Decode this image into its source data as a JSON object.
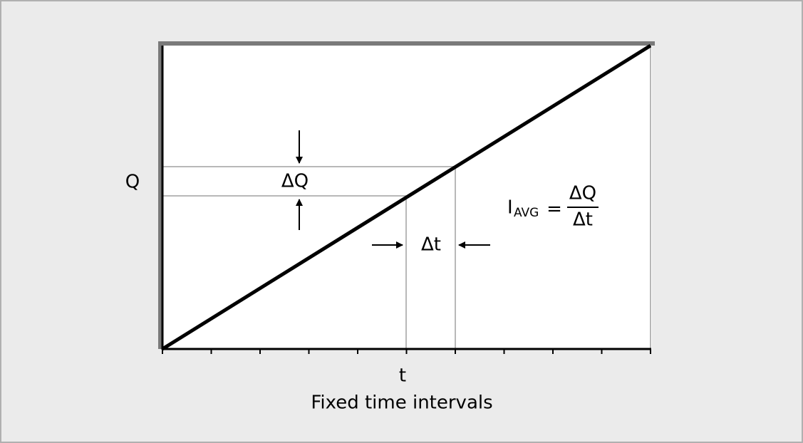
{
  "labels": {
    "y_axis": "Q",
    "delta_q": "ΔQ",
    "delta_t": "Δt",
    "x_axis": "t",
    "x_caption": "Fixed time intervals"
  },
  "formula": {
    "symbol": "I",
    "subscript": "AVG",
    "equals": "=",
    "numerator": "ΔQ",
    "denominator": "Δt"
  }
}
